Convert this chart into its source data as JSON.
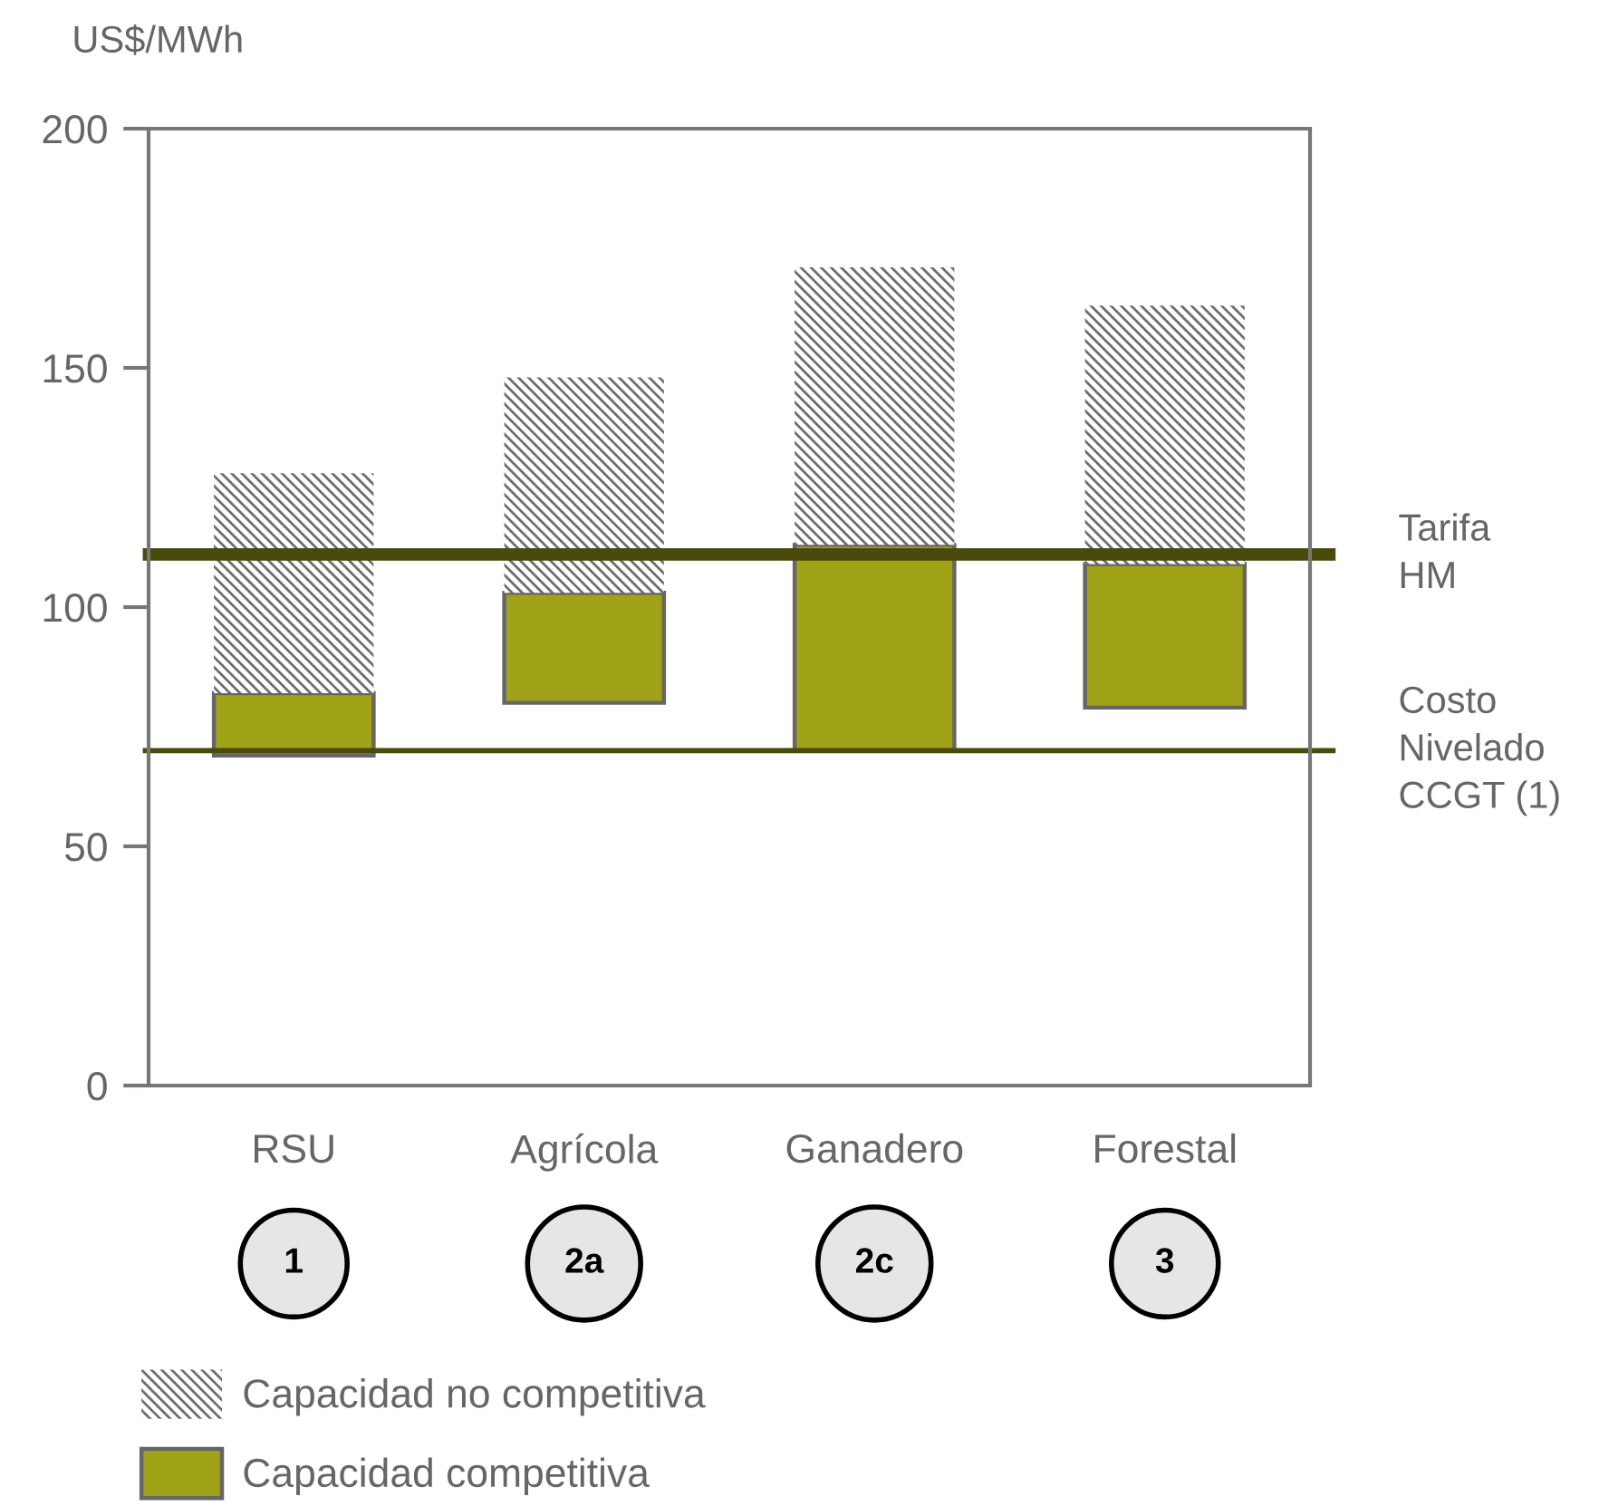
{
  "chart_data": {
    "type": "bar",
    "ylabel": "US$/MWh",
    "categories": [
      "RSU",
      "Agrícola",
      "Ganadero",
      "Forestal"
    ],
    "series": [
      {
        "name": "Capacidad competitiva",
        "color": "#a0a318",
        "base": [
          69,
          80,
          70,
          79
        ],
        "values": [
          13,
          23,
          43,
          30
        ]
      },
      {
        "name": "Capacidad no competitiva",
        "color": "#6e6e6e",
        "base": [
          82,
          103,
          113,
          109
        ],
        "values": [
          46,
          45,
          58,
          54
        ]
      }
    ],
    "ylim": [
      0,
      200
    ],
    "yticks": [
      0,
      50,
      100,
      150,
      200
    ],
    "legend": "bottom left",
    "ref_lines": [
      {
        "axis": "y",
        "value": 111,
        "label": "Tarifa\nHM",
        "color": "#4a4a0c",
        "line_style": "solid"
      },
      {
        "axis": "y",
        "value": 70,
        "label": "Costo\nNivelado\nCCGT (1)",
        "color": "#4a4a0c",
        "line_style": "solid"
      }
    ],
    "annotations": [
      "1",
      "2a",
      "2c",
      "3"
    ]
  }
}
